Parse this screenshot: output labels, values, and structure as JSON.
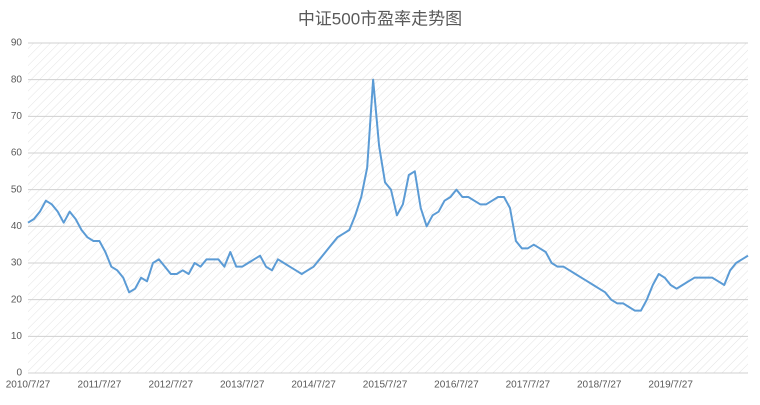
{
  "chart_data": {
    "type": "line",
    "title": "中证500市盈率走势图",
    "categories": [
      "2010/7/27",
      null,
      null,
      null,
      null,
      null,
      null,
      null,
      null,
      null,
      null,
      null,
      "2011/7/27",
      null,
      null,
      null,
      null,
      null,
      null,
      null,
      null,
      null,
      null,
      null,
      "2012/7/27",
      null,
      null,
      null,
      null,
      null,
      null,
      null,
      null,
      null,
      null,
      null,
      "2013/7/27",
      null,
      null,
      null,
      null,
      null,
      null,
      null,
      null,
      null,
      null,
      null,
      "2014/7/27",
      null,
      null,
      null,
      null,
      null,
      null,
      null,
      null,
      null,
      null,
      null,
      "2015/7/27",
      null,
      null,
      null,
      null,
      null,
      null,
      null,
      null,
      null,
      null,
      null,
      "2016/7/27",
      null,
      null,
      null,
      null,
      null,
      null,
      null,
      null,
      null,
      null,
      null,
      "2017/7/27",
      null,
      null,
      null,
      null,
      null,
      null,
      null,
      null,
      null,
      null,
      null,
      "2018/7/27",
      null,
      null,
      null,
      null,
      null,
      null,
      null,
      null,
      null,
      null,
      null,
      "2019/7/27",
      null,
      null,
      null,
      null,
      null,
      null,
      null,
      null,
      null,
      null,
      null,
      null,
      null
    ],
    "series": [
      {
        "color": "#5b9bd5",
        "values": [
          41,
          42,
          44,
          47,
          46,
          44,
          41,
          44,
          42,
          39,
          37,
          36,
          36,
          33,
          29,
          28,
          26,
          22,
          23,
          26,
          25,
          30,
          31,
          29,
          27,
          27,
          28,
          27,
          30,
          29,
          31,
          31,
          31,
          29,
          33,
          29,
          29,
          30,
          31,
          32,
          29,
          28,
          31,
          30,
          29,
          28,
          27,
          28,
          29,
          31,
          33,
          35,
          37,
          38,
          39,
          43,
          48,
          56,
          80,
          62,
          52,
          50,
          43,
          46,
          54,
          55,
          45,
          40,
          43,
          44,
          47,
          48,
          50,
          48,
          48,
          47,
          46,
          46,
          47,
          48,
          48,
          45,
          36,
          34,
          34,
          35,
          34,
          33,
          30,
          29,
          29,
          28,
          27,
          26,
          25,
          24,
          23,
          22,
          20,
          19,
          19,
          18,
          17,
          17,
          20,
          24,
          27,
          26,
          24,
          23,
          24,
          25,
          26,
          26,
          26,
          26,
          25,
          24,
          28,
          30,
          31,
          32
        ]
      }
    ],
    "ylim": [
      0,
      90
    ],
    "yticks": [
      0,
      10,
      20,
      30,
      40,
      50,
      60,
      70,
      80,
      90
    ],
    "grid": true
  }
}
